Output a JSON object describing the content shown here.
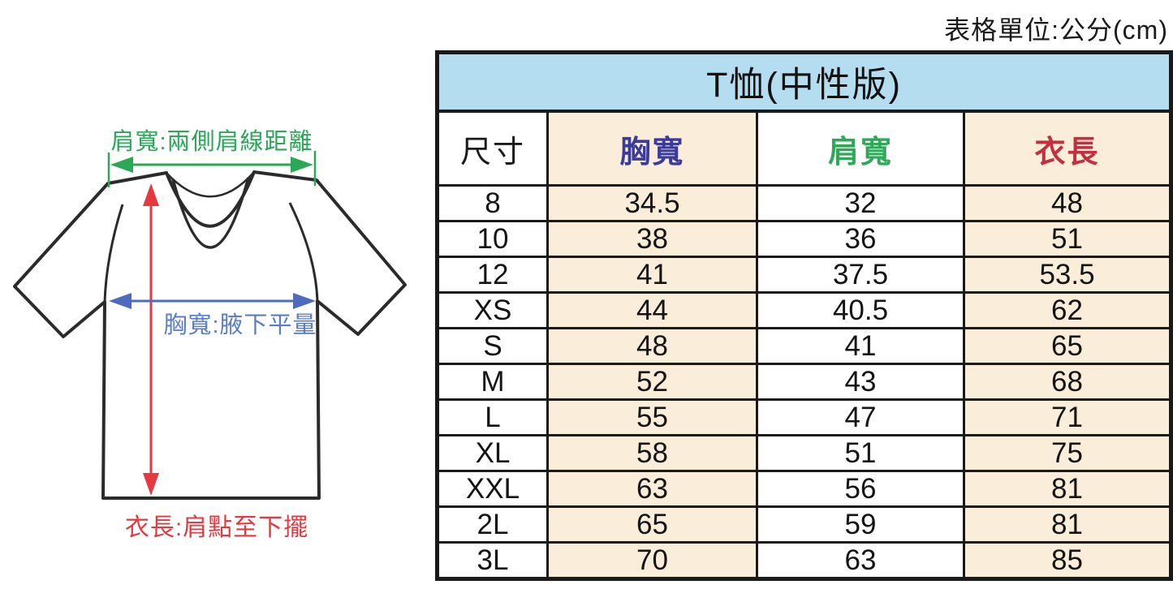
{
  "unit_note": "表格單位:公分(cm)",
  "diagram": {
    "shoulder_label": "肩寬:兩側肩線距離",
    "chest_label": "胸寬:腋下平量",
    "length_label": "衣長:肩點至下擺",
    "colors": {
      "shoulder_green": "#2aa757",
      "chest_blue": "#5b7cc9",
      "length_red": "#e6383f",
      "shirt_outline": "#2b2b2b"
    }
  },
  "chart_data": {
    "type": "table",
    "title": "T恤(中性版)",
    "title_bg": "#b5ddf0",
    "stripe_bg": "#faedda",
    "columns": [
      "尺寸",
      "胸寬",
      "肩寬",
      "衣長"
    ],
    "column_colors": [
      "#1a1a1a",
      "#3b3b99",
      "#2fa959",
      "#c0303f"
    ],
    "rows": [
      [
        "8",
        "34.5",
        "32",
        "48"
      ],
      [
        "10",
        "38",
        "36",
        "51"
      ],
      [
        "12",
        "41",
        "37.5",
        "53.5"
      ],
      [
        "XS",
        "44",
        "40.5",
        "62"
      ],
      [
        "S",
        "48",
        "41",
        "65"
      ],
      [
        "M",
        "52",
        "43",
        "68"
      ],
      [
        "L",
        "55",
        "47",
        "71"
      ],
      [
        "XL",
        "58",
        "51",
        "75"
      ],
      [
        "XXL",
        "63",
        "56",
        "81"
      ],
      [
        "2L",
        "65",
        "59",
        "81"
      ],
      [
        "3L",
        "70",
        "63",
        "85"
      ]
    ]
  }
}
